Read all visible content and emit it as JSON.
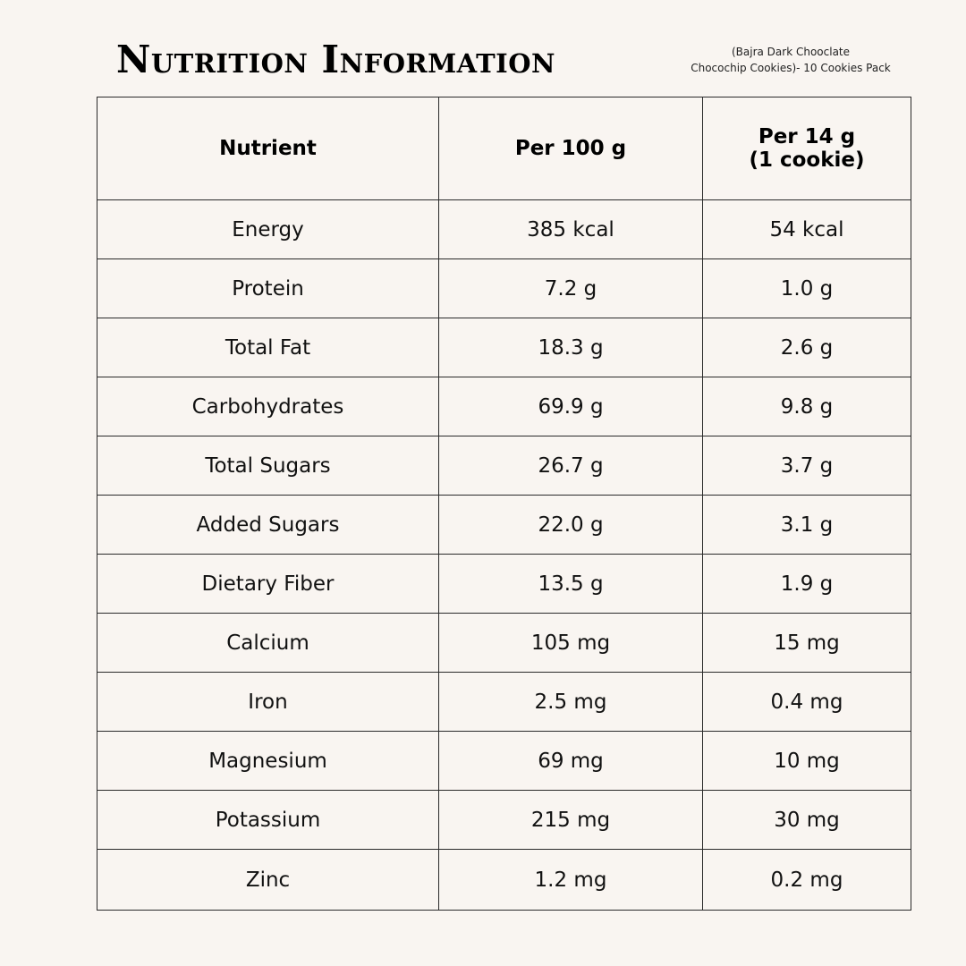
{
  "title": "Nutrition Information",
  "subtitle": {
    "line1": "(Bajra Dark Chooclate",
    "line2": "Chocochip Cookies)- 10 Cookies Pack"
  },
  "table": {
    "headers": {
      "nutrient": "Nutrient",
      "per100": "Per 100 g",
      "perCookie_line1": "Per 14 g",
      "perCookie_line2": "(1 cookie)"
    },
    "rows": [
      {
        "nutrient": "Energy",
        "per100": "385 kcal",
        "perCookie": "54 kcal"
      },
      {
        "nutrient": "Protein",
        "per100": "7.2 g",
        "perCookie": "1.0 g"
      },
      {
        "nutrient": "Total Fat",
        "per100": "18.3 g",
        "perCookie": "2.6 g"
      },
      {
        "nutrient": "Carbohydrates",
        "per100": "69.9 g",
        "perCookie": "9.8 g"
      },
      {
        "nutrient": "Total Sugars",
        "per100": "26.7 g",
        "perCookie": "3.7 g"
      },
      {
        "nutrient": "Added Sugars",
        "per100": "22.0 g",
        "perCookie": "3.1 g"
      },
      {
        "nutrient": "Dietary Fiber",
        "per100": "13.5 g",
        "perCookie": "1.9 g"
      },
      {
        "nutrient": "Calcium",
        "per100": "105 mg",
        "perCookie": "15 mg"
      },
      {
        "nutrient": "Iron",
        "per100": "2.5 mg",
        "perCookie": "0.4 mg"
      },
      {
        "nutrient": "Magnesium",
        "per100": "69 mg",
        "perCookie": "10 mg"
      },
      {
        "nutrient": "Potassium",
        "per100": "215 mg",
        "perCookie": "30 mg"
      },
      {
        "nutrient": "Zinc",
        "per100": "1.2 mg",
        "perCookie": "0.2 mg"
      }
    ]
  },
  "colors": {
    "background": "#f9f5f1",
    "text": "#111111",
    "border": "#2a2a2a"
  }
}
